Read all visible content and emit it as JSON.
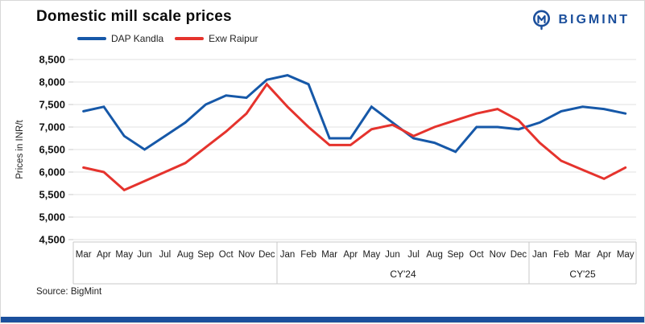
{
  "header": {
    "title": "Domestic mill scale prices",
    "brand": "BIGMINT"
  },
  "legend": [
    {
      "label": "DAP Kandla",
      "color": "#1658a8"
    },
    {
      "label": "Exw Raipur",
      "color": "#e5332d"
    }
  ],
  "chart_data": {
    "type": "line",
    "title": "Domestic mill scale prices",
    "ylabel": "Prices in INR/t",
    "xlabel": "",
    "ylim": [
      4500,
      8500
    ],
    "ytick_step": 500,
    "ytick_labels": [
      "4,500",
      "5,000",
      "5,500",
      "6,000",
      "6,500",
      "7,000",
      "7,500",
      "8,000",
      "8,500"
    ],
    "grid": "horizontal",
    "legend_position": "top",
    "sections": [
      {
        "label": "",
        "months": [
          "Mar",
          "Apr",
          "May",
          "Jun",
          "Jul",
          "Aug",
          "Sep",
          "Oct",
          "Nov",
          "Dec"
        ]
      },
      {
        "label": "CY'24",
        "months": [
          "Jan",
          "Feb",
          "Mar",
          "Apr",
          "May",
          "Jun",
          "Jul",
          "Aug",
          "Sep",
          "Oct",
          "Nov",
          "Dec"
        ]
      },
      {
        "label": "CY'25",
        "months": [
          "Jan",
          "Feb",
          "Mar",
          "Apr",
          "May"
        ]
      }
    ],
    "series": [
      {
        "name": "DAP Kandla",
        "color": "#1658a8",
        "values": [
          7350,
          7450,
          6800,
          6500,
          6800,
          7100,
          7500,
          7700,
          7650,
          8050,
          8150,
          7950,
          6750,
          6750,
          7450,
          7100,
          6750,
          6650,
          6450,
          7000,
          7000,
          6950,
          7100,
          7350,
          7450,
          7400,
          7300
        ]
      },
      {
        "name": "Exw Raipur",
        "color": "#e5332d",
        "values": [
          6100,
          6000,
          5600,
          5800,
          6000,
          6200,
          6550,
          6900,
          7300,
          7950,
          7450,
          7000,
          6600,
          6600,
          6950,
          7050,
          6800,
          7000,
          7150,
          7300,
          7400,
          7150,
          6650,
          6250,
          6050,
          5850,
          6100
        ]
      }
    ]
  },
  "source": "Source: BigMint",
  "colors": {
    "accent_navy": "#1b4f9c",
    "grid": "#e1e1e1",
    "divider": "#c9c9c9",
    "tick_text": "#111111",
    "month_text": "#1a1a1a"
  }
}
